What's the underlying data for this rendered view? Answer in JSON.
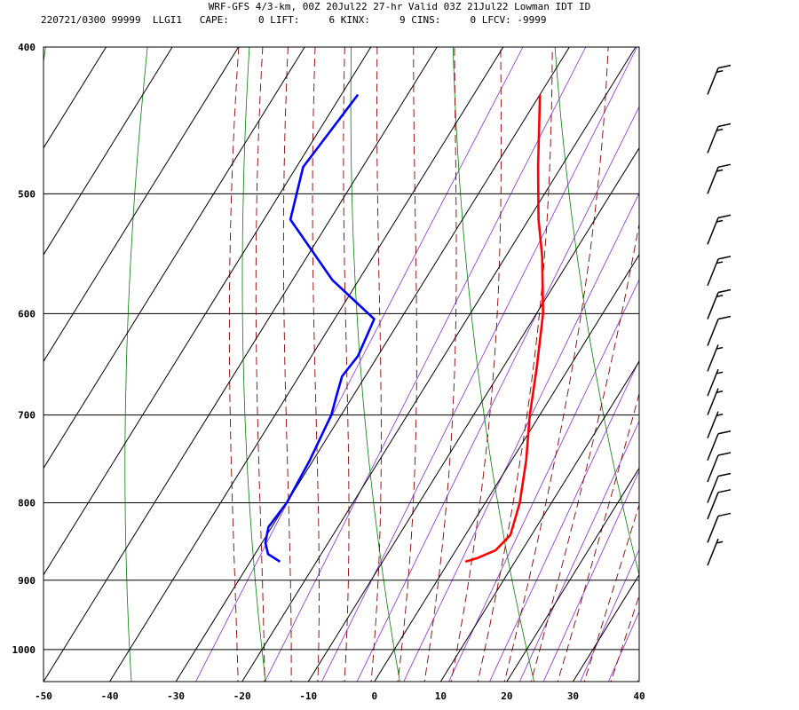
{
  "header": {
    "line1": "WRF-GFS 4/3-km, 00Z 20Jul22 27-hr Valid 03Z 21Jul22 Lowman IDT ID",
    "line2": "220721/0300 99999  LLGI1   CAPE:     0 LIFT:     6 KINX:     9 CINS:     0 LFCV: -9999"
  },
  "colors": {
    "temperature": "#ff0000",
    "dewpoint": "#0000ff",
    "isotherm_grid": "#000000",
    "dry_adiabat": "#008000",
    "moist_adiabat": "#8b0000",
    "mixing_ratio": "#8a2be2",
    "wind_barb": "#000000"
  },
  "chart_data": {
    "type": "skew-t",
    "title": "",
    "xlabel": "",
    "ylabel": "",
    "x_ticks": [
      -50,
      -40,
      -30,
      -20,
      -10,
      0,
      10,
      20,
      30,
      40
    ],
    "y_ticks": [
      400,
      500,
      600,
      700,
      800,
      900,
      1000
    ],
    "xlim": [
      -50,
      40
    ],
    "ylim_pressure_hpa": [
      1050,
      400
    ],
    "y_scale": "log",
    "grid": true,
    "series": [
      {
        "key": "temperature",
        "points": [
          {
            "p": 875,
            "t": 2.5
          },
          {
            "p": 870,
            "t": 4.0
          },
          {
            "p": 860,
            "t": 6.0
          },
          {
            "p": 840,
            "t": 6.8
          },
          {
            "p": 800,
            "t": 5.2
          },
          {
            "p": 750,
            "t": 2.2
          },
          {
            "p": 700,
            "t": -1.5
          },
          {
            "p": 650,
            "t": -5.0
          },
          {
            "p": 600,
            "t": -9.0
          },
          {
            "p": 550,
            "t": -14.5
          },
          {
            "p": 520,
            "t": -18.5
          },
          {
            "p": 480,
            "t": -23.5
          },
          {
            "p": 430,
            "t": -30.0
          }
        ]
      },
      {
        "key": "dewpoint",
        "points": [
          {
            "p": 875,
            "t": -25.5
          },
          {
            "p": 865,
            "t": -28.0
          },
          {
            "p": 850,
            "t": -29.5
          },
          {
            "p": 830,
            "t": -30.5
          },
          {
            "p": 800,
            "t": -30.0
          },
          {
            "p": 750,
            "t": -30.5
          },
          {
            "p": 700,
            "t": -31.5
          },
          {
            "p": 680,
            "t": -32.5
          },
          {
            "p": 660,
            "t": -33.5
          },
          {
            "p": 640,
            "t": -33.0
          },
          {
            "p": 605,
            "t": -34.0
          },
          {
            "p": 570,
            "t": -44.0
          },
          {
            "p": 520,
            "t": -56.0
          },
          {
            "p": 480,
            "t": -59.0
          },
          {
            "p": 430,
            "t": -57.5
          }
        ]
      }
    ],
    "wind_barbs": [
      {
        "p": 880,
        "speed_kt": 5
      },
      {
        "p": 850,
        "speed_kt": 10
      },
      {
        "p": 820,
        "speed_kt": 10
      },
      {
        "p": 800,
        "speed_kt": 10
      },
      {
        "p": 775,
        "speed_kt": 10
      },
      {
        "p": 750,
        "speed_kt": 10
      },
      {
        "p": 725,
        "speed_kt": 5
      },
      {
        "p": 700,
        "speed_kt": 5
      },
      {
        "p": 680,
        "speed_kt": 5
      },
      {
        "p": 655,
        "speed_kt": 5
      },
      {
        "p": 630,
        "speed_kt": 10
      },
      {
        "p": 605,
        "speed_kt": 15
      },
      {
        "p": 575,
        "speed_kt": 15
      },
      {
        "p": 540,
        "speed_kt": 15
      },
      {
        "p": 500,
        "speed_kt": 15
      },
      {
        "p": 470,
        "speed_kt": 15
      },
      {
        "p": 430,
        "speed_kt": 15
      }
    ]
  }
}
